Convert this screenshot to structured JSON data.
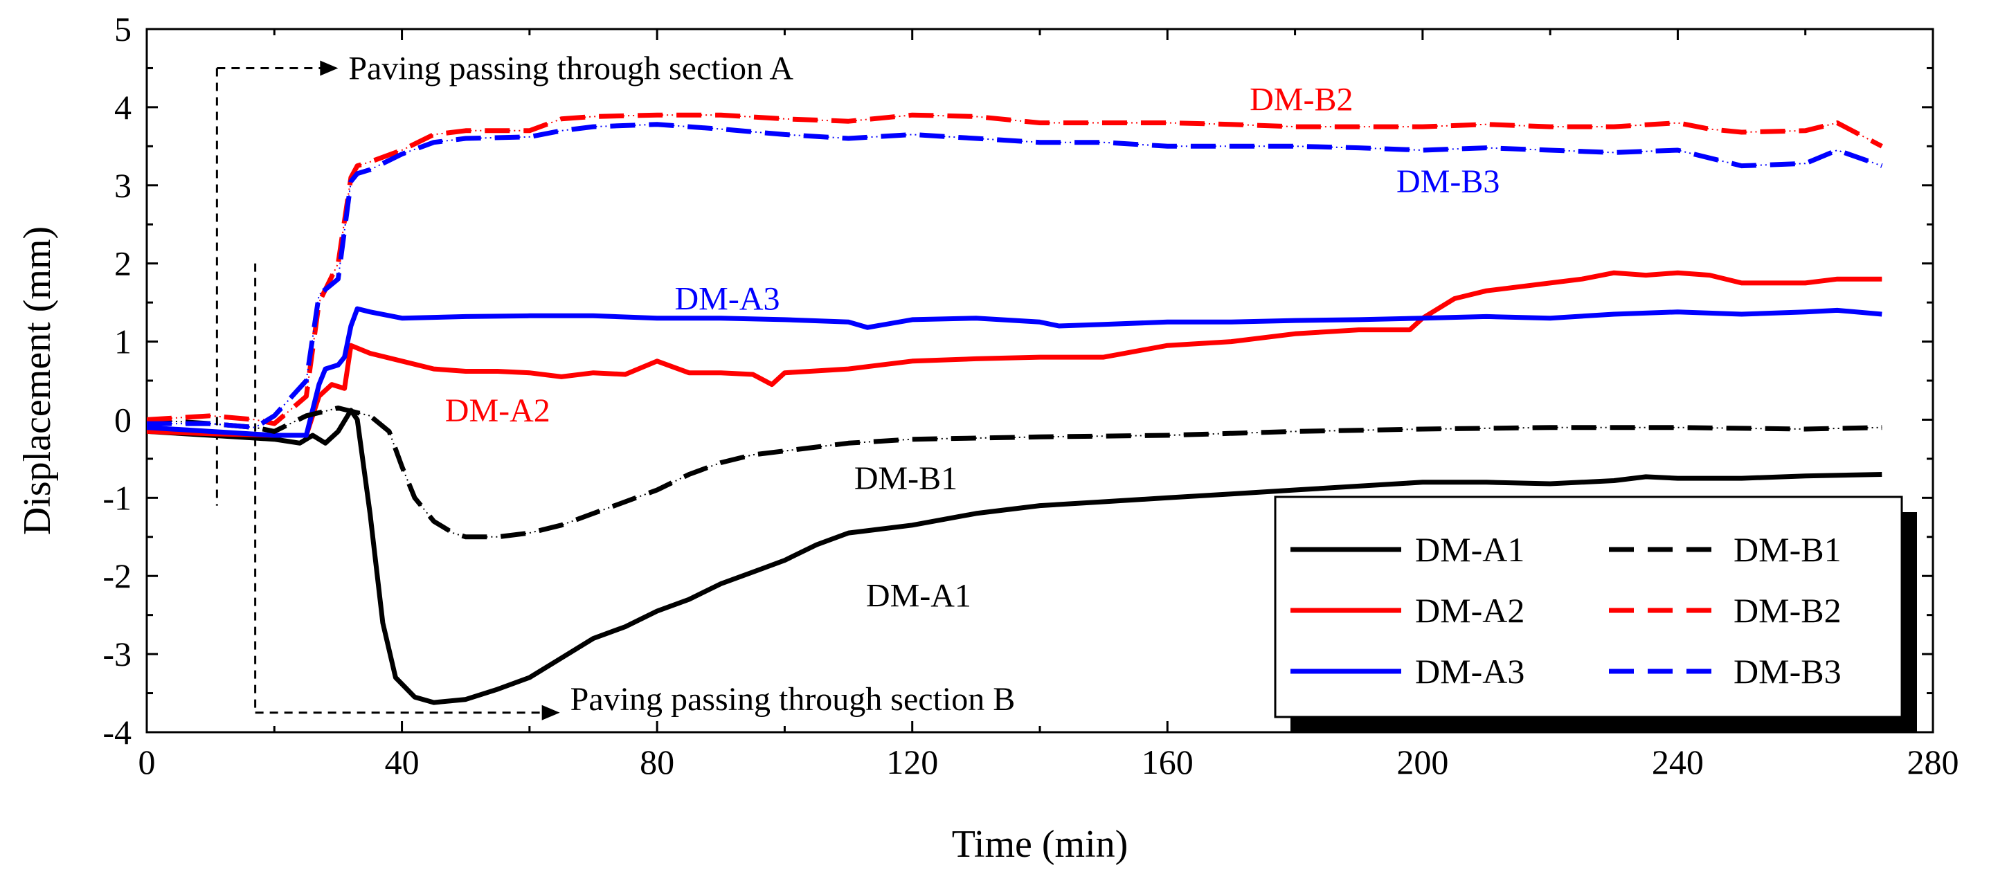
{
  "chart_data": {
    "type": "line",
    "title": "",
    "xlabel": "Time (min)",
    "ylabel": "Displacement (mm)",
    "xlim": [
      0,
      280
    ],
    "ylim": [
      -4,
      5
    ],
    "xticks": [
      0,
      40,
      80,
      120,
      160,
      200,
      240,
      280
    ],
    "yticks": [
      -4,
      -3,
      -2,
      -1,
      0,
      1,
      2,
      3,
      4,
      5
    ],
    "grid": false,
    "legend_position": "bottom-right",
    "series": [
      {
        "name": "DM-A1",
        "color": "#000000",
        "style": "solid",
        "x": [
          0,
          10,
          20,
          24,
          26,
          28,
          30,
          32,
          33,
          35,
          37,
          39,
          42,
          45,
          50,
          55,
          60,
          65,
          70,
          75,
          80,
          85,
          90,
          95,
          100,
          105,
          110,
          115,
          120,
          130,
          140,
          150,
          160,
          170,
          180,
          190,
          200,
          210,
          220,
          230,
          235,
          240,
          250,
          260,
          272
        ],
        "y": [
          -0.15,
          -0.2,
          -0.25,
          -0.3,
          -0.2,
          -0.3,
          -0.15,
          0.12,
          0.0,
          -1.2,
          -2.6,
          -3.3,
          -3.55,
          -3.62,
          -3.58,
          -3.45,
          -3.3,
          -3.05,
          -2.8,
          -2.65,
          -2.45,
          -2.3,
          -2.1,
          -1.95,
          -1.8,
          -1.6,
          -1.45,
          -1.4,
          -1.35,
          -1.2,
          -1.1,
          -1.05,
          -1.0,
          -0.95,
          -0.9,
          -0.85,
          -0.8,
          -0.8,
          -0.82,
          -0.78,
          -0.73,
          -0.75,
          -0.75,
          -0.72,
          -0.7
        ]
      },
      {
        "name": "DM-A2",
        "color": "#ff0000",
        "style": "solid",
        "x": [
          0,
          10,
          20,
          25,
          27,
          29,
          31,
          32,
          35,
          40,
          45,
          50,
          55,
          60,
          65,
          70,
          75,
          80,
          85,
          90,
          95,
          98,
          100,
          110,
          120,
          130,
          140,
          150,
          160,
          170,
          180,
          190,
          198,
          200,
          205,
          210,
          220,
          225,
          230,
          235,
          240,
          245,
          250,
          260,
          265,
          272
        ],
        "y": [
          -0.15,
          -0.18,
          -0.2,
          -0.2,
          0.3,
          0.45,
          0.4,
          0.95,
          0.85,
          0.75,
          0.65,
          0.62,
          0.62,
          0.6,
          0.55,
          0.6,
          0.58,
          0.75,
          0.6,
          0.6,
          0.58,
          0.45,
          0.6,
          0.65,
          0.75,
          0.78,
          0.8,
          0.8,
          0.95,
          1.0,
          1.1,
          1.15,
          1.15,
          1.3,
          1.55,
          1.65,
          1.75,
          1.8,
          1.88,
          1.85,
          1.88,
          1.85,
          1.75,
          1.75,
          1.8,
          1.8
        ]
      },
      {
        "name": "DM-A3",
        "color": "#0000ff",
        "style": "solid",
        "x": [
          0,
          10,
          20,
          25,
          27,
          28,
          30,
          31,
          32,
          33,
          35,
          40,
          50,
          60,
          70,
          80,
          90,
          100,
          110,
          113,
          120,
          130,
          140,
          143,
          150,
          160,
          170,
          180,
          190,
          200,
          210,
          220,
          230,
          240,
          250,
          260,
          265,
          272
        ],
        "y": [
          -0.1,
          -0.15,
          -0.2,
          -0.2,
          0.45,
          0.65,
          0.7,
          0.8,
          1.2,
          1.42,
          1.38,
          1.3,
          1.32,
          1.33,
          1.33,
          1.3,
          1.3,
          1.28,
          1.25,
          1.18,
          1.28,
          1.3,
          1.25,
          1.2,
          1.22,
          1.25,
          1.25,
          1.27,
          1.28,
          1.3,
          1.32,
          1.3,
          1.35,
          1.38,
          1.35,
          1.38,
          1.4,
          1.35
        ]
      },
      {
        "name": "DM-B1",
        "color": "#000000",
        "style": "dash",
        "x": [
          0,
          10,
          17,
          20,
          25,
          30,
          35,
          38,
          40,
          42,
          45,
          48,
          50,
          55,
          60,
          65,
          70,
          75,
          80,
          85,
          90,
          95,
          100,
          110,
          120,
          140,
          160,
          180,
          200,
          220,
          240,
          260,
          272
        ],
        "y": [
          0.0,
          -0.05,
          -0.1,
          -0.15,
          0.05,
          0.15,
          0.05,
          -0.15,
          -0.6,
          -1.0,
          -1.3,
          -1.45,
          -1.5,
          -1.5,
          -1.45,
          -1.35,
          -1.2,
          -1.05,
          -0.9,
          -0.7,
          -0.55,
          -0.45,
          -0.4,
          -0.3,
          -0.25,
          -0.22,
          -0.2,
          -0.15,
          -0.12,
          -0.1,
          -0.1,
          -0.12,
          -0.1
        ]
      },
      {
        "name": "DM-B2",
        "color": "#ff0000",
        "style": "dash",
        "x": [
          0,
          10,
          17,
          20,
          25,
          27,
          30,
          32,
          33,
          35,
          40,
          45,
          50,
          60,
          65,
          70,
          80,
          90,
          100,
          110,
          120,
          130,
          140,
          150,
          160,
          170,
          180,
          190,
          200,
          210,
          220,
          230,
          240,
          245,
          250,
          260,
          265,
          272
        ],
        "y": [
          0.0,
          0.05,
          0.0,
          -0.05,
          0.3,
          1.5,
          2.0,
          3.1,
          3.25,
          3.3,
          3.45,
          3.65,
          3.7,
          3.7,
          3.85,
          3.88,
          3.9,
          3.9,
          3.85,
          3.82,
          3.9,
          3.88,
          3.8,
          3.8,
          3.8,
          3.78,
          3.75,
          3.75,
          3.75,
          3.78,
          3.75,
          3.75,
          3.8,
          3.72,
          3.68,
          3.7,
          3.8,
          3.5
        ]
      },
      {
        "name": "DM-B3",
        "color": "#0000ff",
        "style": "dash",
        "x": [
          0,
          10,
          17,
          20,
          25,
          27,
          30,
          32,
          33,
          35,
          40,
          45,
          50,
          60,
          65,
          70,
          80,
          90,
          100,
          110,
          120,
          130,
          140,
          150,
          160,
          170,
          180,
          190,
          200,
          210,
          220,
          230,
          240,
          245,
          250,
          260,
          265,
          272
        ],
        "y": [
          -0.05,
          -0.05,
          -0.1,
          0.05,
          0.5,
          1.6,
          1.8,
          3.05,
          3.15,
          3.2,
          3.4,
          3.55,
          3.6,
          3.62,
          3.7,
          3.75,
          3.78,
          3.72,
          3.65,
          3.6,
          3.65,
          3.6,
          3.55,
          3.55,
          3.5,
          3.5,
          3.5,
          3.48,
          3.45,
          3.48,
          3.45,
          3.42,
          3.45,
          3.35,
          3.25,
          3.28,
          3.45,
          3.25
        ]
      }
    ],
    "series_labels": [
      {
        "text": "DM-B2",
        "color": "#ff0000",
        "x": 181,
        "y": 4.1
      },
      {
        "text": "DM-B3",
        "color": "#0000ff",
        "x": 204,
        "y": 3.05
      },
      {
        "text": "DM-A3",
        "color": "#0000ff",
        "x": 91,
        "y": 1.55
      },
      {
        "text": "DM-A2",
        "color": "#ff0000",
        "x": 55,
        "y": 0.12
      },
      {
        "text": "DM-B1",
        "color": "#000000",
        "x": 119,
        "y": -0.75
      },
      {
        "text": "DM-A1",
        "color": "#000000",
        "x": 121,
        "y": -2.25
      }
    ],
    "annotations": [
      {
        "text": "Paving passing through section A",
        "marker_x": 11,
        "y_top": 4.5,
        "y_bottom": -1.1,
        "label_y": 4.4
      },
      {
        "text": "Paving passing through section B",
        "marker_x": 17,
        "y_top": 2.0,
        "y_bottom": -3.75,
        "label_y": -3.55
      }
    ]
  }
}
